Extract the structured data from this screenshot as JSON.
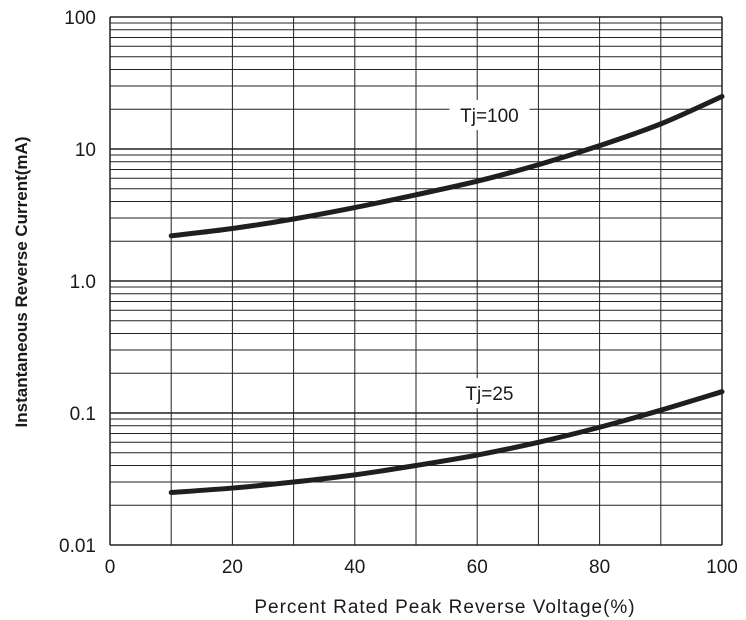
{
  "chart_data": {
    "type": "line",
    "xlabel": "Percent Rated Peak Reverse Voltage(%)",
    "ylabel": "Instantaneous Reverse Current(mA)",
    "xlim": [
      0,
      100
    ],
    "ylim": [
      0.01,
      100
    ],
    "yscale": "log",
    "grid": true,
    "x_ticks": [
      0,
      20,
      40,
      60,
      80,
      100
    ],
    "x_tick_labels": [
      "0",
      "20",
      "40",
      "60",
      "80",
      "100"
    ],
    "y_ticks": [
      0.01,
      0.1,
      1,
      10,
      100
    ],
    "y_tick_labels": [
      "0.01",
      "0.1",
      "1.0",
      "10",
      "100"
    ],
    "series": [
      {
        "name": "Tj=100",
        "color": "#1f1f1f",
        "x": [
          10,
          20,
          30,
          40,
          50,
          60,
          70,
          80,
          90,
          100
        ],
        "y": [
          2.2,
          2.5,
          2.95,
          3.6,
          4.5,
          5.7,
          7.6,
          10.6,
          15.5,
          25
        ]
      },
      {
        "name": "Tj=25",
        "color": "#1f1f1f",
        "x": [
          10,
          20,
          30,
          40,
          50,
          60,
          70,
          80,
          90,
          100
        ],
        "y": [
          0.025,
          0.027,
          0.03,
          0.034,
          0.04,
          0.048,
          0.06,
          0.078,
          0.105,
          0.145
        ]
      }
    ]
  }
}
